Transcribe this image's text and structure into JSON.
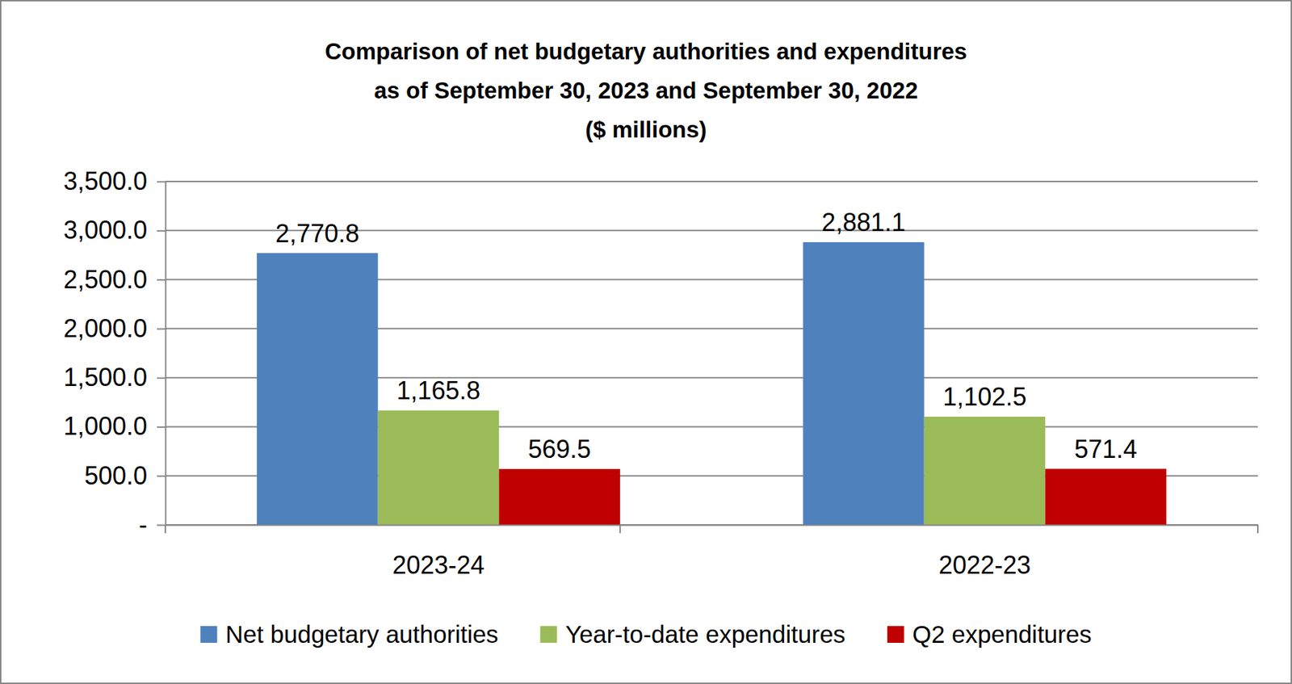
{
  "chart_data": {
    "type": "bar",
    "title": "Comparison of net budgetary authorities and expenditures\nas of September 30, 2023 and September 30, 2022",
    "subtitle": "($ millions)",
    "categories": [
      "2023-24",
      "2022-23"
    ],
    "series": [
      {
        "name": "Net budgetary authorities",
        "color": "#4f81bd",
        "values": [
          2770.8,
          2881.1
        ],
        "value_labels": [
          "2,770.8",
          "2,881.1"
        ]
      },
      {
        "name": "Year-to-date expenditures",
        "color": "#9bbb59",
        "values": [
          1165.8,
          1102.5
        ],
        "value_labels": [
          "1,165.8",
          "1,102.5"
        ]
      },
      {
        "name": "Q2 expenditures",
        "color": "#c00000",
        "values": [
          569.5,
          571.4
        ],
        "value_labels": [
          "569.5",
          "571.4"
        ]
      }
    ],
    "ylim": [
      0,
      3500
    ],
    "yticks": [
      {
        "value": 0,
        "label": "-"
      },
      {
        "value": 500,
        "label": "500.0"
      },
      {
        "value": 1000,
        "label": "1,000.0"
      },
      {
        "value": 1500,
        "label": "1,500.0"
      },
      {
        "value": 2000,
        "label": "2,000.0"
      },
      {
        "value": 2500,
        "label": "2,500.0"
      },
      {
        "value": 3000,
        "label": "3,000.0"
      },
      {
        "value": 3500,
        "label": "3,500.0"
      }
    ],
    "grid": true,
    "legend": "bottom",
    "data_labels": true
  }
}
